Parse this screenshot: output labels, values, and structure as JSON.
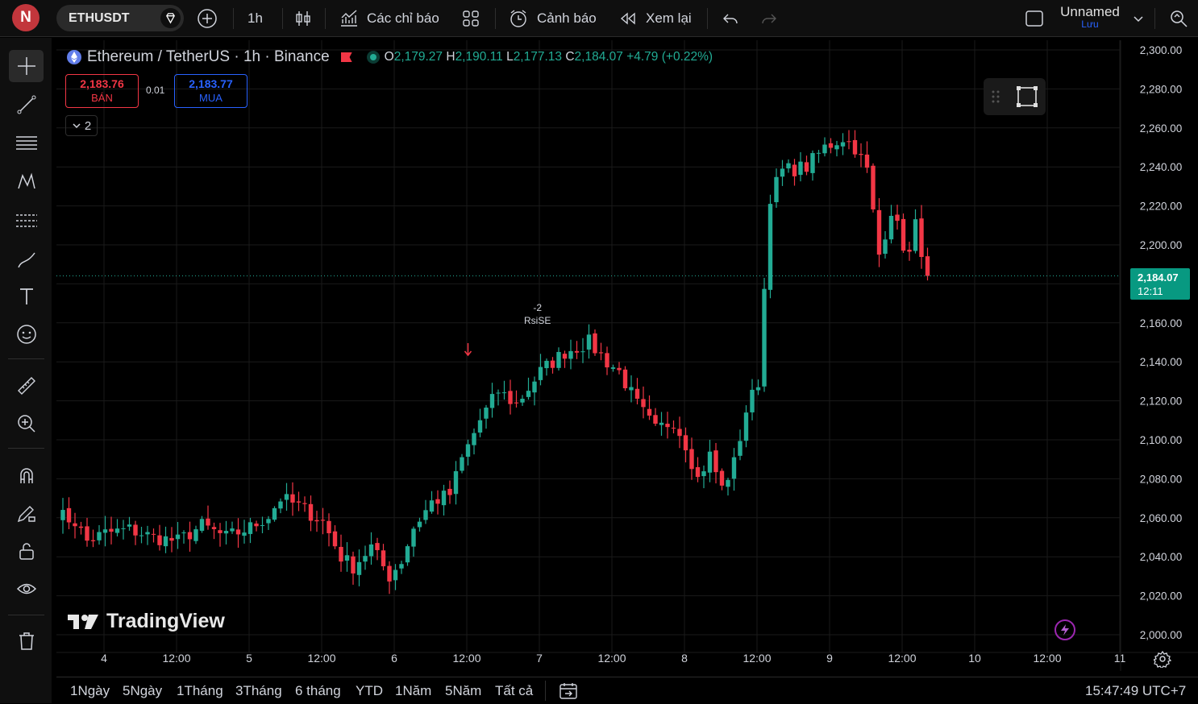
{
  "topbar": {
    "avatar_letter": "N",
    "symbol": "ETHUSDT",
    "interval": "1h",
    "indicators_label": "Các chỉ báo",
    "alerts_label": "Cảnh báo",
    "replay_label": "Xem lại",
    "layout_name": "Unnamed",
    "save_label": "Lưu"
  },
  "legend": {
    "title": "Ethereum / TetherUS · 1h · Binance",
    "o_label": "O",
    "o_value": "2,179.27",
    "h_label": "H",
    "h_value": "2,190.11",
    "l_label": "L",
    "l_value": "2,177.13",
    "c_label": "C",
    "c_value": "2,184.07",
    "change": "+4.79 (+0.22%)",
    "sell_price": "2,183.76",
    "sell_label": "BÁN",
    "spread": "0.01",
    "buy_price": "2,183.77",
    "buy_label": "MUA",
    "collapsed_count": "2"
  },
  "watermark": "TradingView",
  "last_price_tag": {
    "price": "2,184.07",
    "countdown": "12:11"
  },
  "signal": {
    "top": "-2",
    "label": "RsiSE"
  },
  "bottombar": {
    "ranges": [
      "1Ngày",
      "5Ngày",
      "1Tháng",
      "3Tháng",
      "6 tháng",
      "YTD",
      "1Năm",
      "5Năm",
      "Tất cả"
    ],
    "clock": "15:47:49 UTC+7"
  },
  "colors": {
    "up": "#22ab94",
    "down": "#f23645",
    "background": "#000000",
    "grid": "#1a1a1a"
  },
  "chart_data": {
    "type": "candlestick",
    "ylim": [
      2000,
      2300
    ],
    "y_ticks": [
      "2,300.00",
      "2,280.00",
      "2,260.00",
      "2,240.00",
      "2,220.00",
      "2,200.00",
      "2,180.00",
      "2,160.00",
      "2,140.00",
      "2,120.00",
      "2,100.00",
      "2,080.00",
      "2,060.00",
      "2,040.00",
      "2,020.00",
      "2,000.00"
    ],
    "x_ticks": [
      "4",
      "12:00",
      "5",
      "12:00",
      "6",
      "12:00",
      "7",
      "12:00",
      "8",
      "12:00",
      "9",
      "12:00",
      "10",
      "12:00",
      "11"
    ],
    "bar_count": 144,
    "anchors": [
      [
        0,
        2062
      ],
      [
        3,
        2058
      ],
      [
        5,
        2048
      ],
      [
        8,
        2052
      ],
      [
        12,
        2054
      ],
      [
        16,
        2050
      ],
      [
        20,
        2048
      ],
      [
        24,
        2056
      ],
      [
        28,
        2050
      ],
      [
        32,
        2055
      ],
      [
        35,
        2061
      ],
      [
        37,
        2070
      ],
      [
        40,
        2066
      ],
      [
        44,
        2058
      ],
      [
        47,
        2040
      ],
      [
        49,
        2035
      ],
      [
        52,
        2045
      ],
      [
        55,
        2030
      ],
      [
        57,
        2038
      ],
      [
        59,
        2055
      ],
      [
        62,
        2068
      ],
      [
        65,
        2072
      ],
      [
        67,
        2090
      ],
      [
        70,
        2110
      ],
      [
        73,
        2125
      ],
      [
        76,
        2118
      ],
      [
        80,
        2135
      ],
      [
        84,
        2145
      ],
      [
        88,
        2150
      ],
      [
        91,
        2140
      ],
      [
        93,
        2135
      ],
      [
        96,
        2118
      ],
      [
        99,
        2105
      ],
      [
        102,
        2110
      ],
      [
        104,
        2098
      ],
      [
        106,
        2080
      ],
      [
        108,
        2092
      ],
      [
        110,
        2075
      ],
      [
        112,
        2088
      ],
      [
        114,
        2115
      ],
      [
        116,
        2130
      ],
      [
        118,
        2225
      ],
      [
        120,
        2238
      ],
      [
        124,
        2240
      ],
      [
        127,
        2250
      ],
      [
        130,
        2255
      ],
      [
        132,
        2250
      ],
      [
        134,
        2238
      ],
      [
        136,
        2195
      ],
      [
        138,
        2218
      ],
      [
        140,
        2200
      ],
      [
        141,
        2195
      ],
      [
        142,
        2210
      ],
      [
        144,
        2185
      ]
    ],
    "last_close": 2184.07,
    "signal_bar": 67
  }
}
